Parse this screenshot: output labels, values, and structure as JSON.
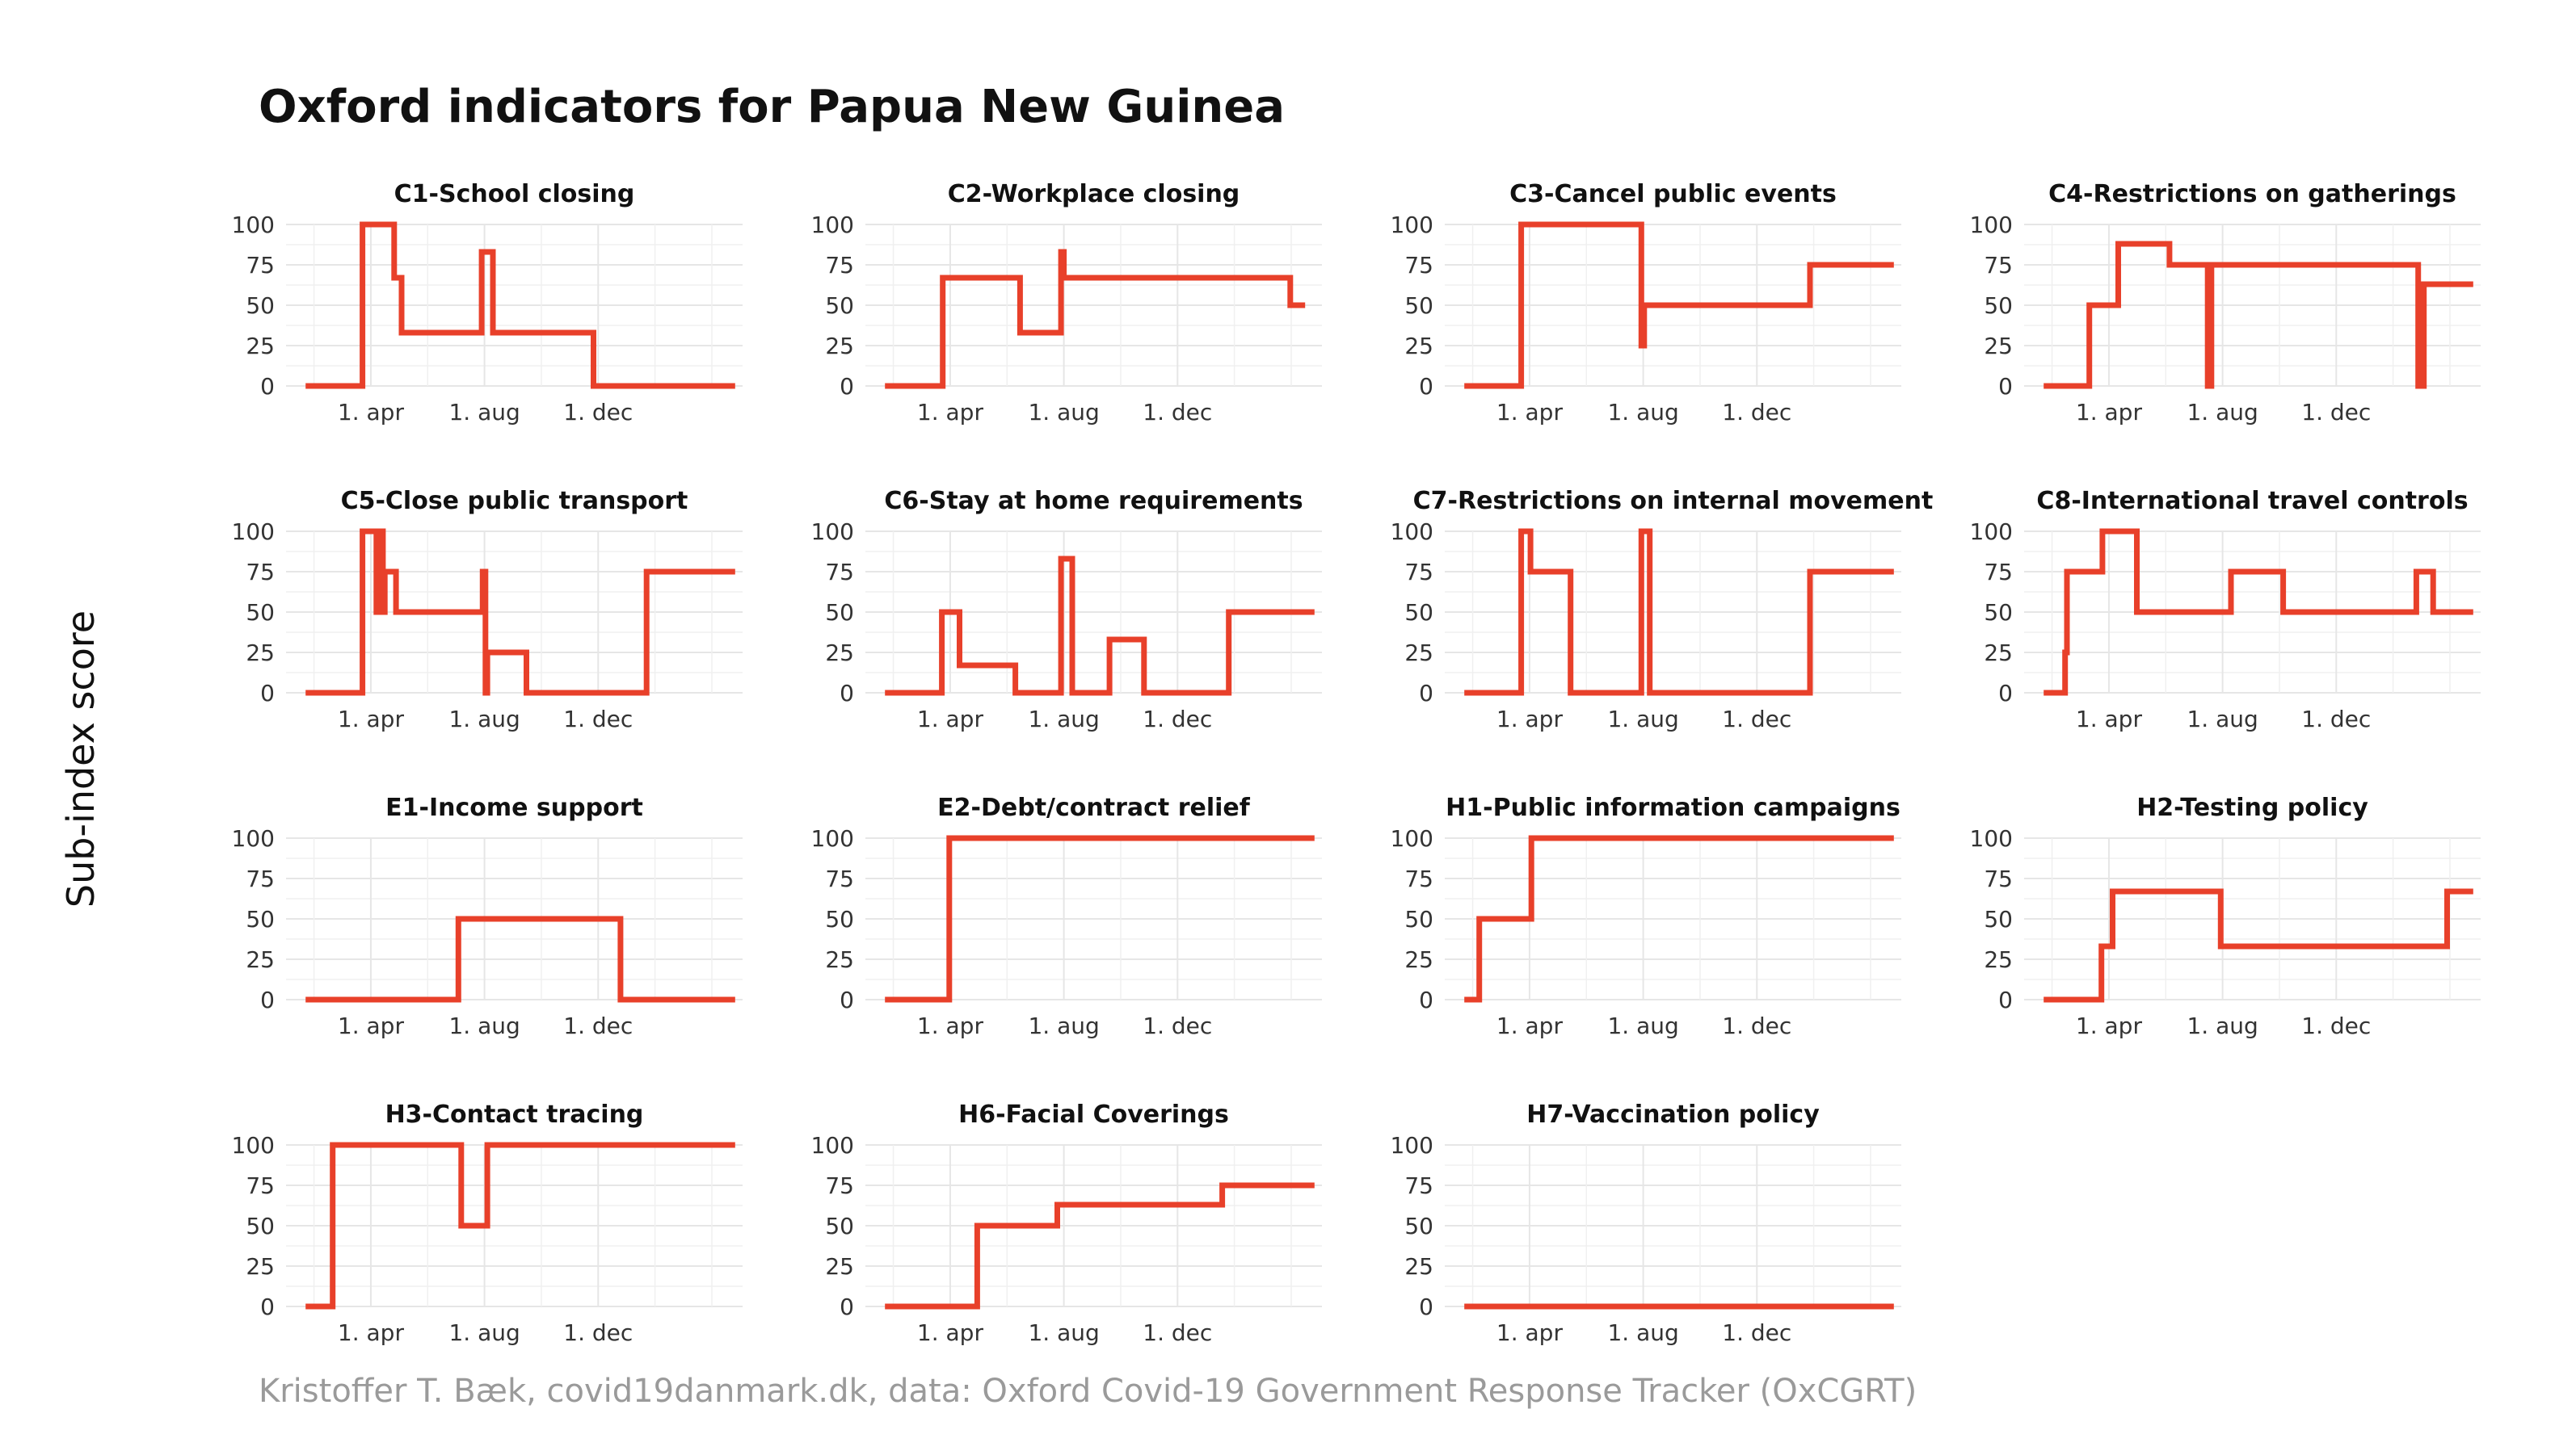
{
  "title": "Oxford indicators for Papua New Guinea",
  "ylabel": "Sub-index score",
  "caption": "Kristoffer T. Bæk, covid19danmark.dk, data: Oxford Covid-19 Government Response Tracker (OxCGRT)",
  "colors": {
    "line": "#e8402a",
    "grid": "#e6e6e6",
    "text": "#222222",
    "caption": "#9a9a9a"
  },
  "chart_data": [
    {
      "type": "line",
      "title": "C1-School closing",
      "xlim": [
        "2020-01-01",
        "2021-05-05"
      ],
      "ylim": [
        0,
        100
      ],
      "x_ticks": [
        {
          "date": "2020-04-01",
          "label": "1. apr"
        },
        {
          "date": "2020-08-01",
          "label": "1. aug"
        },
        {
          "date": "2020-12-01",
          "label": "1. dec"
        }
      ],
      "y_ticks": [
        0,
        25,
        50,
        75,
        100
      ],
      "steps": [
        [
          "2020-01-22",
          0
        ],
        [
          "2020-03-23",
          100
        ],
        [
          "2020-04-26",
          67
        ],
        [
          "2020-05-04",
          33
        ],
        [
          "2020-07-29",
          83
        ],
        [
          "2020-08-10",
          33
        ],
        [
          "2020-11-26",
          0
        ],
        [
          "2021-04-27",
          0
        ]
      ]
    },
    {
      "type": "line",
      "title": "C2-Workplace closing",
      "xlim": [
        "2020-01-01",
        "2021-05-05"
      ],
      "ylim": [
        0,
        100
      ],
      "x_ticks": [
        {
          "date": "2020-04-01",
          "label": "1. apr"
        },
        {
          "date": "2020-08-01",
          "label": "1. aug"
        },
        {
          "date": "2020-12-01",
          "label": "1. dec"
        }
      ],
      "y_ticks": [
        0,
        25,
        50,
        75,
        100
      ],
      "steps": [
        [
          "2020-01-22",
          0
        ],
        [
          "2020-03-24",
          67
        ],
        [
          "2020-06-15",
          33
        ],
        [
          "2020-07-29",
          83
        ],
        [
          "2020-08-01",
          67
        ],
        [
          "2021-04-01",
          50
        ],
        [
          "2021-04-17",
          50
        ]
      ]
    },
    {
      "type": "line",
      "title": "C3-Cancel public events",
      "xlim": [
        "2020-01-01",
        "2021-05-05"
      ],
      "ylim": [
        0,
        100
      ],
      "x_ticks": [
        {
          "date": "2020-04-01",
          "label": "1. apr"
        },
        {
          "date": "2020-08-01",
          "label": "1. aug"
        },
        {
          "date": "2020-12-01",
          "label": "1. dec"
        }
      ],
      "y_ticks": [
        0,
        25,
        50,
        75,
        100
      ],
      "steps": [
        [
          "2020-01-22",
          0
        ],
        [
          "2020-03-23",
          100
        ],
        [
          "2020-07-30",
          25
        ],
        [
          "2020-08-02",
          50
        ],
        [
          "2021-01-27",
          75
        ],
        [
          "2021-04-27",
          75
        ]
      ]
    },
    {
      "type": "line",
      "title": "C4-Restrictions on gatherings",
      "xlim": [
        "2020-01-01",
        "2021-05-05"
      ],
      "ylim": [
        0,
        100
      ],
      "x_ticks": [
        {
          "date": "2020-04-01",
          "label": "1. apr"
        },
        {
          "date": "2020-08-01",
          "label": "1. aug"
        },
        {
          "date": "2020-12-01",
          "label": "1. dec"
        }
      ],
      "y_ticks": [
        0,
        25,
        50,
        75,
        100
      ],
      "steps": [
        [
          "2020-01-22",
          0
        ],
        [
          "2020-03-11",
          50
        ],
        [
          "2020-04-11",
          88
        ],
        [
          "2020-06-05",
          75
        ],
        [
          "2020-07-16",
          0
        ],
        [
          "2020-07-20",
          75
        ],
        [
          "2021-02-27",
          0
        ],
        [
          "2021-03-05",
          63
        ],
        [
          "2021-04-27",
          63
        ]
      ]
    },
    {
      "type": "line",
      "title": "C5-Close public transport",
      "xlim": [
        "2020-01-01",
        "2021-05-05"
      ],
      "ylim": [
        0,
        100
      ],
      "x_ticks": [
        {
          "date": "2020-04-01",
          "label": "1. apr"
        },
        {
          "date": "2020-08-01",
          "label": "1. aug"
        },
        {
          "date": "2020-12-01",
          "label": "1. dec"
        }
      ],
      "y_ticks": [
        0,
        25,
        50,
        75,
        100
      ],
      "steps": [
        [
          "2020-01-22",
          0
        ],
        [
          "2020-03-23",
          100
        ],
        [
          "2020-04-07",
          50
        ],
        [
          "2020-04-10",
          100
        ],
        [
          "2020-04-14",
          50
        ],
        [
          "2020-04-16",
          75
        ],
        [
          "2020-04-28",
          50
        ],
        [
          "2020-07-30",
          75
        ],
        [
          "2020-08-02",
          0
        ],
        [
          "2020-08-04",
          25
        ],
        [
          "2020-09-15",
          0
        ],
        [
          "2021-01-22",
          75
        ],
        [
          "2021-04-27",
          75
        ]
      ]
    },
    {
      "type": "line",
      "title": "C6-Stay at home requirements",
      "xlim": [
        "2020-01-01",
        "2021-05-05"
      ],
      "ylim": [
        0,
        100
      ],
      "x_ticks": [
        {
          "date": "2020-04-01",
          "label": "1. apr"
        },
        {
          "date": "2020-08-01",
          "label": "1. aug"
        },
        {
          "date": "2020-12-01",
          "label": "1. dec"
        }
      ],
      "y_ticks": [
        0,
        25,
        50,
        75,
        100
      ],
      "steps": [
        [
          "2020-01-22",
          0
        ],
        [
          "2020-03-23",
          50
        ],
        [
          "2020-04-11",
          17
        ],
        [
          "2020-06-10",
          0
        ],
        [
          "2020-07-29",
          83
        ],
        [
          "2020-08-10",
          0
        ],
        [
          "2020-09-19",
          33
        ],
        [
          "2020-10-26",
          0
        ],
        [
          "2021-01-25",
          50
        ],
        [
          "2021-04-27",
          50
        ]
      ]
    },
    {
      "type": "line",
      "title": "C7-Restrictions on internal movement",
      "xlim": [
        "2020-01-01",
        "2021-05-05"
      ],
      "ylim": [
        0,
        100
      ],
      "x_ticks": [
        {
          "date": "2020-04-01",
          "label": "1. apr"
        },
        {
          "date": "2020-08-01",
          "label": "1. aug"
        },
        {
          "date": "2020-12-01",
          "label": "1. dec"
        }
      ],
      "y_ticks": [
        0,
        25,
        50,
        75,
        100
      ],
      "steps": [
        [
          "2020-01-22",
          0
        ],
        [
          "2020-03-23",
          100
        ],
        [
          "2020-04-02",
          75
        ],
        [
          "2020-05-15",
          0
        ],
        [
          "2020-07-30",
          100
        ],
        [
          "2020-08-08",
          0
        ],
        [
          "2021-01-27",
          75
        ],
        [
          "2021-04-27",
          75
        ]
      ]
    },
    {
      "type": "line",
      "title": "C8-International travel controls",
      "xlim": [
        "2020-01-01",
        "2021-05-05"
      ],
      "ylim": [
        0,
        100
      ],
      "x_ticks": [
        {
          "date": "2020-04-01",
          "label": "1. apr"
        },
        {
          "date": "2020-08-01",
          "label": "1. aug"
        },
        {
          "date": "2020-12-01",
          "label": "1. dec"
        }
      ],
      "y_ticks": [
        0,
        25,
        50,
        75,
        100
      ],
      "steps": [
        [
          "2020-01-22",
          0
        ],
        [
          "2020-02-14",
          25
        ],
        [
          "2020-02-16",
          75
        ],
        [
          "2020-03-25",
          100
        ],
        [
          "2020-05-01",
          50
        ],
        [
          "2020-08-10",
          75
        ],
        [
          "2020-10-05",
          50
        ],
        [
          "2021-02-25",
          75
        ],
        [
          "2021-03-15",
          50
        ],
        [
          "2021-04-27",
          50
        ]
      ]
    },
    {
      "type": "line",
      "title": "E1-Income support",
      "xlim": [
        "2020-01-01",
        "2021-05-05"
      ],
      "ylim": [
        0,
        100
      ],
      "x_ticks": [
        {
          "date": "2020-04-01",
          "label": "1. apr"
        },
        {
          "date": "2020-08-01",
          "label": "1. aug"
        },
        {
          "date": "2020-12-01",
          "label": "1. dec"
        }
      ],
      "y_ticks": [
        0,
        25,
        50,
        75,
        100
      ],
      "steps": [
        [
          "2020-01-22",
          0
        ],
        [
          "2020-07-04",
          50
        ],
        [
          "2020-12-25",
          0
        ],
        [
          "2021-04-27",
          0
        ]
      ]
    },
    {
      "type": "line",
      "title": "E2-Debt/contract relief",
      "xlim": [
        "2020-01-01",
        "2021-05-05"
      ],
      "ylim": [
        0,
        100
      ],
      "x_ticks": [
        {
          "date": "2020-04-01",
          "label": "1. apr"
        },
        {
          "date": "2020-08-01",
          "label": "1. aug"
        },
        {
          "date": "2020-12-01",
          "label": "1. dec"
        }
      ],
      "y_ticks": [
        0,
        25,
        50,
        75,
        100
      ],
      "steps": [
        [
          "2020-01-22",
          0
        ],
        [
          "2020-03-31",
          100
        ],
        [
          "2021-04-27",
          100
        ]
      ]
    },
    {
      "type": "line",
      "title": "H1-Public information campaigns",
      "xlim": [
        "2020-01-01",
        "2021-05-05"
      ],
      "ylim": [
        0,
        100
      ],
      "x_ticks": [
        {
          "date": "2020-04-01",
          "label": "1. apr"
        },
        {
          "date": "2020-08-01",
          "label": "1. aug"
        },
        {
          "date": "2020-12-01",
          "label": "1. dec"
        }
      ],
      "y_ticks": [
        0,
        25,
        50,
        75,
        100
      ],
      "steps": [
        [
          "2020-01-22",
          0
        ],
        [
          "2020-02-07",
          50
        ],
        [
          "2020-04-03",
          100
        ],
        [
          "2021-04-27",
          100
        ]
      ]
    },
    {
      "type": "line",
      "title": "H2-Testing policy",
      "xlim": [
        "2020-01-01",
        "2021-05-05"
      ],
      "ylim": [
        0,
        100
      ],
      "x_ticks": [
        {
          "date": "2020-04-01",
          "label": "1. apr"
        },
        {
          "date": "2020-08-01",
          "label": "1. aug"
        },
        {
          "date": "2020-12-01",
          "label": "1. dec"
        }
      ],
      "y_ticks": [
        0,
        25,
        50,
        75,
        100
      ],
      "steps": [
        [
          "2020-01-22",
          0
        ],
        [
          "2020-03-24",
          33
        ],
        [
          "2020-04-05",
          67
        ],
        [
          "2020-07-30",
          33
        ],
        [
          "2021-03-30",
          67
        ],
        [
          "2021-04-27",
          67
        ]
      ]
    },
    {
      "type": "line",
      "title": "H3-Contact tracing",
      "xlim": [
        "2020-01-01",
        "2021-05-05"
      ],
      "ylim": [
        0,
        100
      ],
      "x_ticks": [
        {
          "date": "2020-04-01",
          "label": "1. apr"
        },
        {
          "date": "2020-08-01",
          "label": "1. aug"
        },
        {
          "date": "2020-12-01",
          "label": "1. dec"
        }
      ],
      "y_ticks": [
        0,
        25,
        50,
        75,
        100
      ],
      "steps": [
        [
          "2020-01-22",
          0
        ],
        [
          "2020-02-20",
          100
        ],
        [
          "2020-07-07",
          50
        ],
        [
          "2020-08-04",
          100
        ],
        [
          "2021-04-27",
          100
        ]
      ]
    },
    {
      "type": "line",
      "title": "H6-Facial Coverings",
      "xlim": [
        "2020-01-01",
        "2021-05-05"
      ],
      "ylim": [
        0,
        100
      ],
      "x_ticks": [
        {
          "date": "2020-04-01",
          "label": "1. apr"
        },
        {
          "date": "2020-08-01",
          "label": "1. aug"
        },
        {
          "date": "2020-12-01",
          "label": "1. dec"
        }
      ],
      "y_ticks": [
        0,
        25,
        50,
        75,
        100
      ],
      "steps": [
        [
          "2020-01-22",
          0
        ],
        [
          "2020-04-30",
          50
        ],
        [
          "2020-07-25",
          63
        ],
        [
          "2021-01-18",
          75
        ],
        [
          "2021-04-27",
          75
        ]
      ]
    },
    {
      "type": "line",
      "title": "H7-Vaccination policy",
      "xlim": [
        "2020-01-01",
        "2021-05-05"
      ],
      "ylim": [
        0,
        100
      ],
      "x_ticks": [
        {
          "date": "2020-04-01",
          "label": "1. apr"
        },
        {
          "date": "2020-08-01",
          "label": "1. aug"
        },
        {
          "date": "2020-12-01",
          "label": "1. dec"
        }
      ],
      "y_ticks": [
        0,
        25,
        50,
        75,
        100
      ],
      "steps": [
        [
          "2020-01-22",
          0
        ],
        [
          "2021-04-27",
          0
        ]
      ]
    }
  ]
}
